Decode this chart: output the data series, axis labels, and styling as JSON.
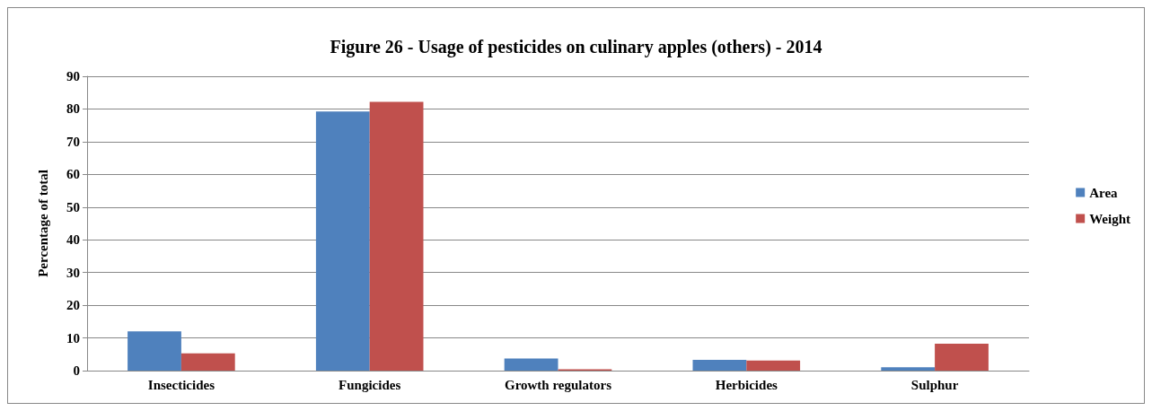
{
  "chart_data": {
    "type": "bar",
    "title": "Figure 26 - Usage of pesticides on culinary apples (others) - 2014",
    "ylabel": "Percentage of total",
    "categories": [
      "Insecticides",
      "Fungicides",
      "Growth regulators",
      "Herbicides",
      "Sulphur"
    ],
    "series": [
      {
        "name": "Area",
        "color": "#4f81bd",
        "values": [
          12.0,
          79.2,
          3.7,
          3.3,
          1.0
        ]
      },
      {
        "name": "Weight",
        "color": "#c0504d",
        "values": [
          5.3,
          82.2,
          0.4,
          3.1,
          8.2
        ]
      }
    ],
    "ylim": [
      0,
      90
    ],
    "yticks": [
      0,
      10,
      20,
      30,
      40,
      50,
      60,
      70,
      80,
      90
    ],
    "grid": "y",
    "legend": "right"
  }
}
